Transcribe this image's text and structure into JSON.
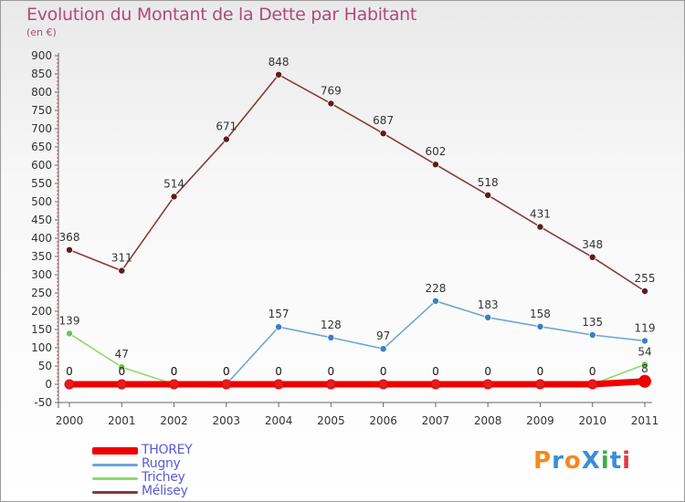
{
  "header": {
    "title": "Evolution du Montant de la Dette par Habitant",
    "subtitle": "(en €)"
  },
  "logo": {
    "text": "ProXiti",
    "letters": [
      {
        "char": "P",
        "color": "#f28a1e"
      },
      {
        "char": "r",
        "color": "#3a8ed8"
      },
      {
        "char": "o",
        "color": "#f28a1e"
      },
      {
        "char": "X",
        "color": "#3a8ed8"
      },
      {
        "char": "i",
        "color": "#3ab04a"
      },
      {
        "char": "t",
        "color": "#3a8ed8"
      },
      {
        "char": "i",
        "color": "#e23a3a"
      }
    ]
  },
  "chart_data": {
    "type": "line",
    "title": "Evolution du Montant de la Dette par Habitant",
    "subtitle": "(en €)",
    "xlabel": "",
    "ylabel": "",
    "categories": [
      "2000",
      "2001",
      "2002",
      "2003",
      "2004",
      "2005",
      "2006",
      "2007",
      "2008",
      "2009",
      "2010",
      "2011"
    ],
    "ylim": [
      -50,
      900
    ],
    "yticks": [
      -50,
      0,
      50,
      100,
      150,
      200,
      250,
      300,
      350,
      400,
      450,
      500,
      550,
      600,
      650,
      700,
      750,
      800,
      850,
      900
    ],
    "grid": false,
    "legend_position": "bottom-left",
    "series": [
      {
        "name": "THOREY",
        "color": "#ee0000",
        "marker_color": "#cc0000",
        "values": [
          0,
          0,
          0,
          0,
          0,
          0,
          0,
          0,
          0,
          0,
          0,
          8
        ],
        "labels": [
          "0",
          "0",
          "0",
          "0",
          "0",
          "0",
          "0",
          "0",
          "0",
          "0",
          "0",
          "8"
        ]
      },
      {
        "name": "Rugny",
        "color": "#6ea6d6",
        "marker_color": "#3a7fc4",
        "values": [
          0,
          0,
          0,
          0,
          157,
          128,
          97,
          228,
          183,
          158,
          135,
          119
        ],
        "labels": [
          "0",
          "0",
          "0",
          "0",
          "157",
          "128",
          "97",
          "228",
          "183",
          "158",
          "135",
          "119"
        ]
      },
      {
        "name": "Trichey",
        "color": "#8ed870",
        "marker_color": "#6cc44a",
        "values": [
          139,
          47,
          0,
          0,
          0,
          0,
          0,
          0,
          0,
          0,
          0,
          54
        ],
        "labels": [
          "139",
          "47",
          "0",
          "0",
          "0",
          "0",
          "0",
          "0",
          "0",
          "0",
          "0",
          "54"
        ]
      },
      {
        "name": "Mélisey",
        "color": "#8a3a3a",
        "marker_color": "#5e1a1a",
        "values": [
          368,
          311,
          514,
          671,
          848,
          769,
          687,
          602,
          518,
          431,
          348,
          255
        ],
        "labels": [
          "368",
          "311",
          "514",
          "671",
          "848",
          "769",
          "687",
          "602",
          "518",
          "431",
          "348",
          "255"
        ]
      }
    ]
  }
}
